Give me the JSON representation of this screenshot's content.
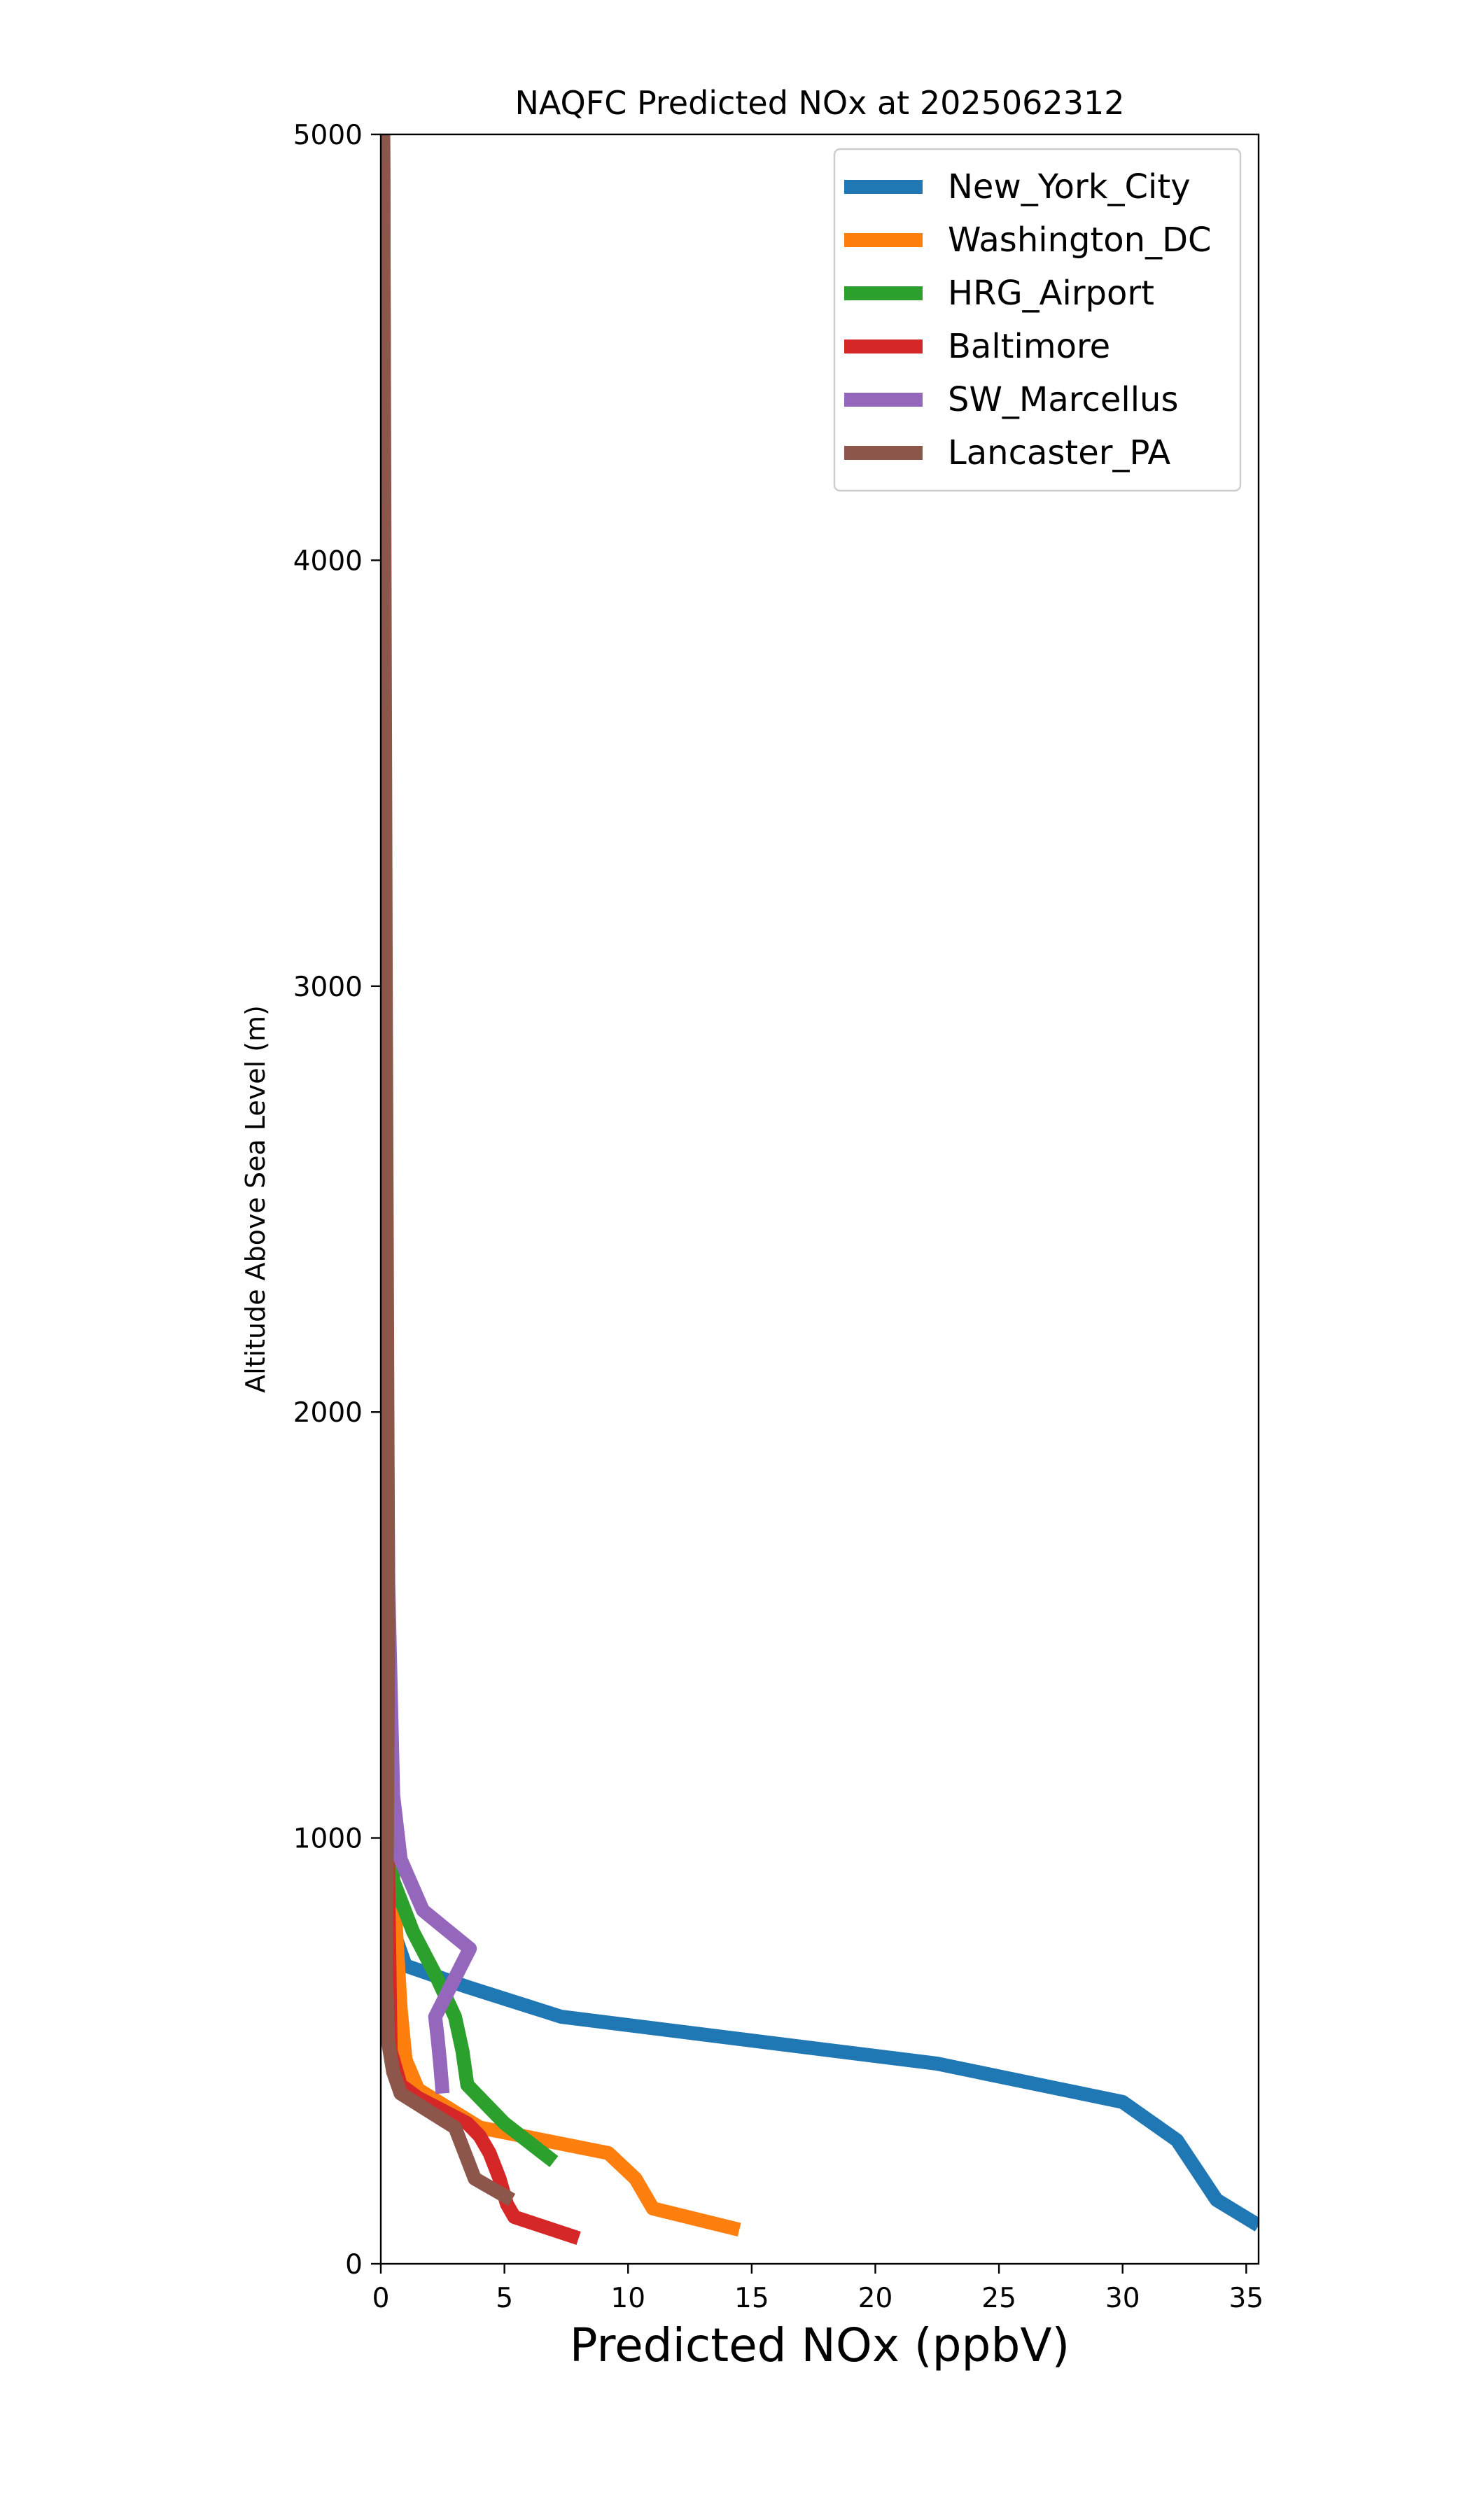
{
  "chart_data": {
    "type": "line",
    "title": "NAQFC Predicted NOx at 2025062312",
    "xlabel": "Predicted NOx (ppbV)",
    "ylabel": "Altitude Above Sea Level (m)",
    "xlim": [
      0,
      35.5
    ],
    "ylim": [
      0,
      5000
    ],
    "x_ticks": [
      "0",
      "5",
      "10",
      "15",
      "20",
      "25",
      "30",
      "35"
    ],
    "y_ticks": [
      "0",
      "1000",
      "2000",
      "3000",
      "4000",
      "5000"
    ],
    "grid": false,
    "legend_position": "top-right",
    "series": [
      {
        "name": "New_York_City",
        "color": "#1f77b4",
        "points": [
          [
            35.5,
            90
          ],
          [
            33.8,
            150
          ],
          [
            33.0,
            220
          ],
          [
            32.2,
            290
          ],
          [
            30.0,
            380
          ],
          [
            22.5,
            470
          ],
          [
            7.3,
            580
          ],
          [
            3.5,
            650
          ],
          [
            1.0,
            700
          ],
          [
            0.4,
            800
          ],
          [
            0.3,
            1200
          ],
          [
            0.2,
            2000
          ],
          [
            0.15,
            3000
          ],
          [
            0.1,
            5000
          ]
        ]
      },
      {
        "name": "Washington_DC",
        "color": "#ff7f0e",
        "points": [
          [
            14.5,
            80
          ],
          [
            11.0,
            130
          ],
          [
            10.3,
            200
          ],
          [
            9.2,
            260
          ],
          [
            4.0,
            320
          ],
          [
            1.5,
            410
          ],
          [
            1.0,
            480
          ],
          [
            0.8,
            600
          ],
          [
            0.5,
            900
          ],
          [
            0.3,
            1500
          ],
          [
            0.2,
            2500
          ],
          [
            0.15,
            3500
          ],
          [
            0.1,
            5000
          ]
        ]
      },
      {
        "name": "HRG_Airport",
        "color": "#2ca02c",
        "points": [
          [
            7.0,
            240
          ],
          [
            5.0,
            330
          ],
          [
            3.5,
            420
          ],
          [
            3.3,
            500
          ],
          [
            3.0,
            580
          ],
          [
            2.2,
            680
          ],
          [
            1.3,
            780
          ],
          [
            0.5,
            900
          ],
          [
            0.3,
            1100
          ],
          [
            0.2,
            2000
          ],
          [
            0.1,
            5000
          ]
        ]
      },
      {
        "name": "Baltimore",
        "color": "#d62728",
        "points": [
          [
            8.0,
            60
          ],
          [
            5.4,
            110
          ],
          [
            5.1,
            140
          ],
          [
            4.8,
            200
          ],
          [
            4.4,
            260
          ],
          [
            4.0,
            300
          ],
          [
            3.5,
            330
          ],
          [
            1.5,
            390
          ],
          [
            0.8,
            420
          ],
          [
            0.4,
            500
          ],
          [
            0.3,
            900
          ],
          [
            0.2,
            2000
          ],
          [
            0.1,
            5000
          ]
        ]
      },
      {
        "name": "SW_Marcellus",
        "color": "#9467bd",
        "points": [
          [
            2.5,
            400
          ],
          [
            2.4,
            470
          ],
          [
            2.3,
            530
          ],
          [
            2.2,
            580
          ],
          [
            3.6,
            740
          ],
          [
            1.7,
            830
          ],
          [
            0.8,
            950
          ],
          [
            0.5,
            1100
          ],
          [
            0.3,
            1600
          ],
          [
            0.2,
            2500
          ],
          [
            0.1,
            5000
          ]
        ]
      },
      {
        "name": "Lancaster_PA",
        "color": "#8c564b",
        "points": [
          [
            5.3,
            150
          ],
          [
            3.8,
            200
          ],
          [
            3.0,
            320
          ],
          [
            0.8,
            400
          ],
          [
            0.5,
            450
          ],
          [
            0.3,
            520
          ],
          [
            0.2,
            700
          ],
          [
            0.25,
            1000
          ],
          [
            0.3,
            1500
          ],
          [
            0.2,
            3000
          ],
          [
            0.15,
            4000
          ],
          [
            0.1,
            5000
          ]
        ]
      }
    ]
  }
}
